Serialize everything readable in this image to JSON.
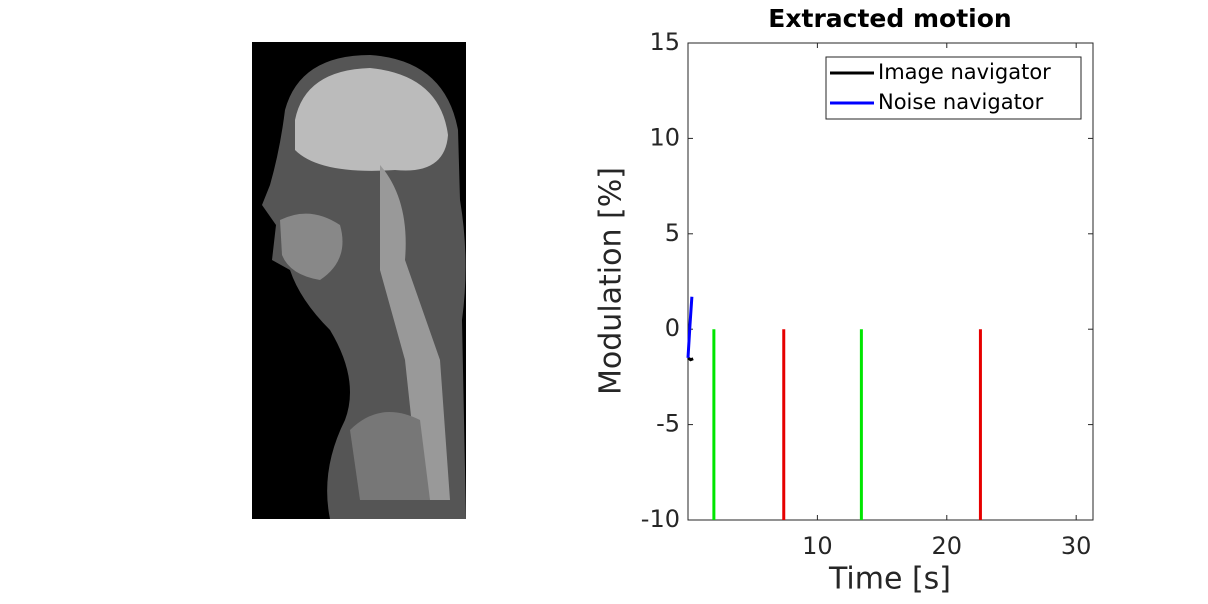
{
  "chart_data": {
    "type": "line",
    "title": "Extracted motion",
    "xlabel": "Time [s]",
    "ylabel": "Modulation [%]",
    "xlim": [
      0,
      31.3
    ],
    "xticks": [
      10,
      20,
      30
    ],
    "ylim": [
      -10,
      15
    ],
    "yticks": [
      -10,
      -5,
      0,
      5,
      10,
      15
    ],
    "legend": "upper right",
    "series": [
      {
        "name": "Image navigator",
        "color": "#000000",
        "x": [
          0,
          0.2,
          0.4
        ],
        "values": [
          -1.5,
          -1.6,
          -1.55
        ]
      },
      {
        "name": "Noise navigator",
        "color": "#0000ff",
        "x": [
          0,
          0.15,
          0.3
        ],
        "values": [
          -1.5,
          0.2,
          1.7
        ]
      }
    ],
    "markers": [
      {
        "x": 2.0,
        "y": [
          -10,
          0
        ],
        "color": "#00e600"
      },
      {
        "x": 7.4,
        "y": [
          -10,
          0
        ],
        "color": "#e60000"
      },
      {
        "x": 13.4,
        "y": [
          -10,
          0
        ],
        "color": "#00e600"
      },
      {
        "x": 22.6,
        "y": [
          -10,
          0
        ],
        "color": "#e60000"
      }
    ]
  }
}
